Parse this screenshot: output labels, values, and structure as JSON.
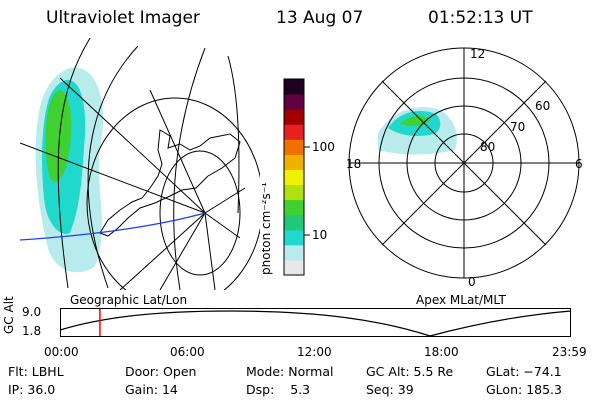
{
  "header": {
    "instrument": "Ultraviolet Imager",
    "date": "13 Aug 07",
    "time": "01:52:13 UT"
  },
  "geo_panel": {
    "caption": "Geographic Lat/Lon"
  },
  "polar_panel": {
    "caption": "Apex MLat/MLT",
    "mlt_labels": {
      "top": "12",
      "left": "18",
      "right": "6",
      "bottom": "0"
    },
    "lat_labels": [
      "60",
      "70",
      "80"
    ]
  },
  "colorbar": {
    "unit_label": "photon cm⁻²s⁻¹",
    "ticks": [
      "100",
      "10"
    ],
    "colors": [
      "#e8e8e8",
      "#b8ecec",
      "#20d8cc",
      "#20c878",
      "#40d030",
      "#b0e010",
      "#f0f000",
      "#f0b000",
      "#f07000",
      "#e82020",
      "#a00000",
      "#600040",
      "#200020"
    ]
  },
  "altitude_timeline": {
    "y_axis_label": "GC Alt",
    "y_ticks": [
      "9.0",
      "1.8"
    ],
    "x_ticks": [
      "00:00",
      "06:00",
      "12:00",
      "18:00",
      "23:59"
    ],
    "current_time_fraction": 0.0763,
    "marker_color": "#ff0000"
  },
  "info": {
    "filter": {
      "label": "Flt:",
      "value": "LBHL"
    },
    "ip": {
      "label": "IP:",
      "value": "36.0"
    },
    "door": {
      "label": "Door:",
      "value": "Open"
    },
    "gain": {
      "label": "Gain:",
      "value": "14"
    },
    "mode": {
      "label": "Mode:",
      "value": "Normal"
    },
    "dsp": {
      "label": "Dsp:",
      "value": "5.3"
    },
    "gc_alt": {
      "label": "GC Alt:",
      "value": "5.5 Re"
    },
    "seq": {
      "label": "Seq:",
      "value": "39"
    },
    "glat": {
      "label": "GLat:",
      "value": "−74.1"
    },
    "glon": {
      "label": "GLon:",
      "value": "185.3"
    }
  }
}
